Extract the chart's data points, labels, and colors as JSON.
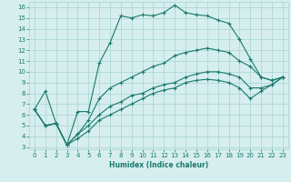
{
  "xlabel": "Humidex (Indice chaleur)",
  "bg_color": "#d6eeee",
  "line_color": "#1a7a6e",
  "grid_color": "#a8d4d4",
  "xlim": [
    -0.5,
    23.5
  ],
  "ylim": [
    2.8,
    16.5
  ],
  "xticks": [
    0,
    1,
    2,
    3,
    4,
    5,
    6,
    7,
    8,
    9,
    10,
    11,
    12,
    13,
    14,
    15,
    16,
    17,
    18,
    19,
    20,
    21,
    22,
    23
  ],
  "yticks": [
    3,
    4,
    5,
    6,
    7,
    8,
    9,
    10,
    11,
    12,
    13,
    14,
    15,
    16
  ],
  "line1_x": [
    0,
    1,
    2,
    3,
    4,
    5,
    6,
    7,
    8,
    9,
    10,
    11,
    12,
    13,
    14,
    15,
    16,
    17,
    18,
    19,
    20,
    21,
    22,
    23
  ],
  "line1_y": [
    6.5,
    8.2,
    5.2,
    3.2,
    6.3,
    6.3,
    10.8,
    12.7,
    15.2,
    15.0,
    15.3,
    15.2,
    15.5,
    16.2,
    15.5,
    15.3,
    15.2,
    14.8,
    14.5,
    13.0,
    11.2,
    9.5,
    9.2,
    9.5
  ],
  "line2_x": [
    0,
    1,
    2,
    3,
    4,
    5,
    6,
    7,
    8,
    9,
    10,
    11,
    12,
    13,
    14,
    15,
    16,
    17,
    18,
    19,
    20,
    21,
    22,
    23
  ],
  "line2_y": [
    6.5,
    5.0,
    5.2,
    3.2,
    4.2,
    5.5,
    7.5,
    8.5,
    9.0,
    9.5,
    10.0,
    10.5,
    10.8,
    11.5,
    11.8,
    12.0,
    12.2,
    12.0,
    11.8,
    11.0,
    10.5,
    9.5,
    9.2,
    9.5
  ],
  "line3_x": [
    0,
    1,
    2,
    3,
    4,
    5,
    6,
    7,
    8,
    9,
    10,
    11,
    12,
    13,
    14,
    15,
    16,
    17,
    18,
    19,
    20,
    21,
    22,
    23
  ],
  "line3_y": [
    6.5,
    5.0,
    5.2,
    3.2,
    4.2,
    5.0,
    6.0,
    6.8,
    7.2,
    7.8,
    8.0,
    8.5,
    8.8,
    9.0,
    9.5,
    9.8,
    10.0,
    10.0,
    9.8,
    9.5,
    8.5,
    8.5,
    8.8,
    9.5
  ],
  "line4_x": [
    0,
    1,
    2,
    3,
    4,
    5,
    6,
    7,
    8,
    9,
    10,
    11,
    12,
    13,
    14,
    15,
    16,
    17,
    18,
    19,
    20,
    21,
    22,
    23
  ],
  "line4_y": [
    6.5,
    5.0,
    5.2,
    3.2,
    3.8,
    4.5,
    5.5,
    6.0,
    6.5,
    7.0,
    7.5,
    8.0,
    8.3,
    8.5,
    9.0,
    9.2,
    9.3,
    9.2,
    9.0,
    8.5,
    7.5,
    8.2,
    8.8,
    9.5
  ]
}
